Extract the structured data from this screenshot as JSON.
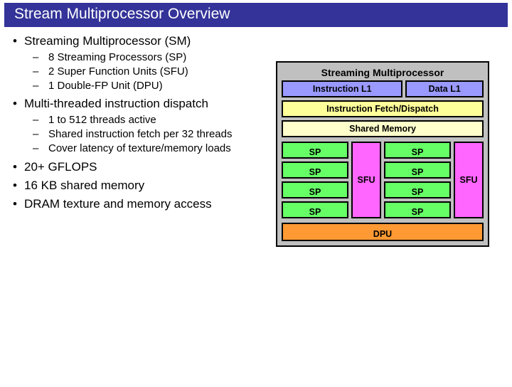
{
  "title": "Stream Multiprocessor Overview",
  "bullets": {
    "b1": "Streaming Multiprocessor (SM)",
    "b1s1": "8 Streaming Processors (SP)",
    "b1s2": "2 Super Function Units (SFU)",
    "b1s3": "1 Double-FP Unit (DPU)",
    "b2": "Multi-threaded instruction dispatch",
    "b2s1": "1 to 512 threads active",
    "b2s2": "Shared instruction fetch per 32 threads",
    "b2s3": "Cover latency of texture/memory loads",
    "b3": "20+ GFLOPS",
    "b4": "16 KB shared memory",
    "b5": "DRAM texture and memory access"
  },
  "diagram": {
    "title": "Streaming Multiprocessor",
    "inst_l1": "Instruction L1",
    "data_l1": "Data L1",
    "fetch": "Instruction Fetch/Dispatch",
    "shared": "Shared Memory",
    "sp": "SP",
    "sfu": "SFU",
    "dpu": "DPU",
    "colors": {
      "titlebar": "#333399",
      "box_bg": "#c0c0c0",
      "l1": "#9999ff",
      "fetch": "#ffff99",
      "shared": "#ffffcc",
      "sp": "#66ff66",
      "sfu": "#ff66ff",
      "dpu": "#ff9933"
    }
  }
}
